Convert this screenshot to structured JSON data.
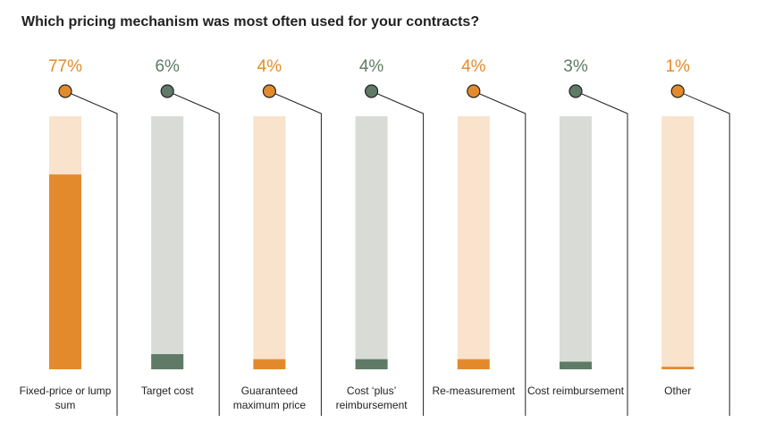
{
  "chart_data": {
    "type": "bar",
    "title": "Which pricing mechanism was most often used for your contracts?",
    "categories": [
      "Fixed-price or lump sum",
      "Target cost",
      "Guaranteed maximum price",
      "Cost ‘plus’ reimbursement",
      "Re-measurement",
      "Cost reimbursement",
      "Other"
    ],
    "values": [
      77,
      6,
      4,
      4,
      4,
      3,
      1
    ],
    "value_labels": [
      "77%",
      "6%",
      "4%",
      "4%",
      "4%",
      "3%",
      "1%"
    ],
    "colors": [
      "#e38b2c",
      "#5f7a66",
      "#e38b2c",
      "#5f7a66",
      "#e38b2c",
      "#5f7a66",
      "#e38b2c"
    ],
    "track_colors": [
      "#f9e3cc",
      "#d9dcd6",
      "#f9e3cc",
      "#d9dcd6",
      "#f9e3cc",
      "#d9dcd6",
      "#f9e3cc"
    ],
    "ylim": [
      0,
      100
    ]
  }
}
